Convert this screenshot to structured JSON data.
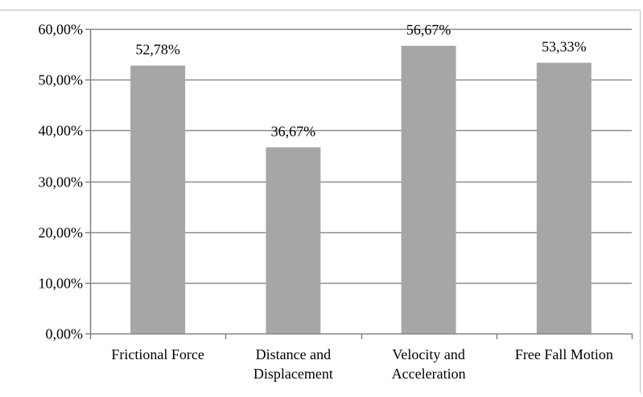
{
  "chart_data": {
    "type": "bar",
    "categories": [
      [
        "Frictional Force"
      ],
      [
        "Distance and",
        "Displacement"
      ],
      [
        "Velocity and",
        "Acceleration"
      ],
      [
        "Free Fall Motion"
      ]
    ],
    "values": [
      52.78,
      36.67,
      56.67,
      53.33
    ],
    "data_labels": [
      "52,78%",
      "36,67%",
      "56,67%",
      "53,33%"
    ],
    "ylim": [
      0,
      60
    ],
    "yticks": [
      0,
      10,
      20,
      30,
      40,
      50,
      60
    ],
    "ytick_labels": [
      "0,00%",
      "10,00%",
      "20,00%",
      "30,00%",
      "40,00%",
      "50,00%",
      "60,00%"
    ],
    "grid": true,
    "legend": "none",
    "bar_color": "#a6a6a6",
    "grid_color": "#8c8c8c"
  }
}
